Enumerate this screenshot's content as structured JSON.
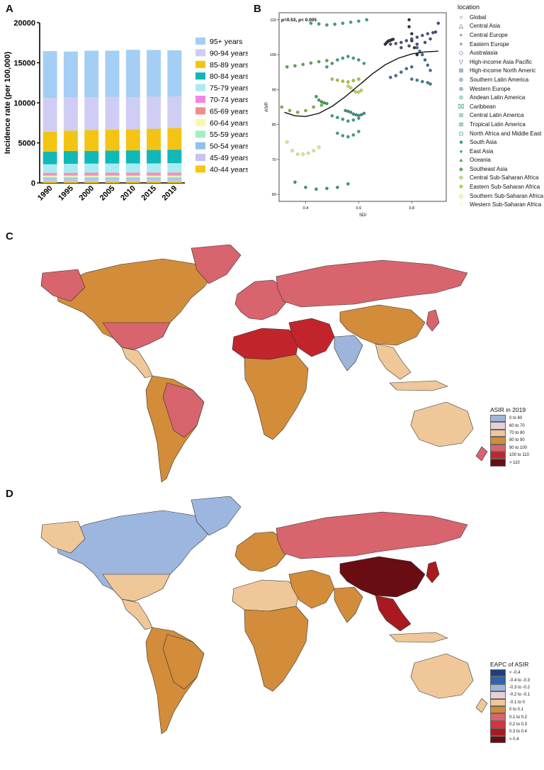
{
  "panels": {
    "a": "A",
    "b": "B",
    "c": "C",
    "d": "D"
  },
  "colors": {
    "c_scale": [
      "#9fb4da",
      "#e6cfd8",
      "#efc798",
      "#d38c3a",
      "#d8646d",
      "#c2242b",
      "#6a0d12"
    ],
    "d_scale": [
      "#1d3f82",
      "#2f62b0",
      "#9db6df",
      "#e8cdd6",
      "#efc798",
      "#d38c3a",
      "#d8646d",
      "#d8323b",
      "#a81a20",
      "#6a0d12"
    ]
  },
  "chart_data": [
    {
      "type": "bar",
      "stacked": true,
      "categories": [
        "1990",
        "1995",
        "2000",
        "2005",
        "2010",
        "2015",
        "2019"
      ],
      "ylabel": "Incidence rate (per 100,000)",
      "ylim": [
        0,
        20000
      ],
      "yticks": [
        0,
        5000,
        10000,
        15000,
        20000
      ],
      "series": [
        {
          "name": "40-44 years",
          "color": "#f5c518",
          "values": [
            170,
            170,
            170,
            170,
            170,
            170,
            170
          ]
        },
        {
          "name": "45-49 years",
          "color": "#c9c3ef",
          "values": [
            310,
            310,
            310,
            310,
            310,
            310,
            310
          ]
        },
        {
          "name": "50-54 years",
          "color": "#8fc1ea",
          "values": [
            130,
            130,
            130,
            130,
            130,
            130,
            130
          ]
        },
        {
          "name": "55-59 years",
          "color": "#a4ecc2",
          "values": [
            150,
            150,
            150,
            150,
            150,
            150,
            150
          ]
        },
        {
          "name": "60-64 years",
          "color": "#fbf6ae",
          "values": [
            160,
            160,
            160,
            160,
            160,
            160,
            160
          ]
        },
        {
          "name": "65-69 years",
          "color": "#ee8e86",
          "values": [
            160,
            170,
            170,
            170,
            170,
            170,
            170
          ]
        },
        {
          "name": "70-74 years",
          "color": "#ef88e5",
          "values": [
            180,
            180,
            190,
            200,
            210,
            210,
            220
          ]
        },
        {
          "name": "75-79 years",
          "color": "#a8ecf2",
          "values": [
            1070,
            1120,
            1130,
            1130,
            1130,
            1130,
            1150
          ]
        },
        {
          "name": "80-84 years",
          "color": "#10b8b7",
          "values": [
            1570,
            1590,
            1590,
            1620,
            1630,
            1680,
            1690
          ]
        },
        {
          "name": "85-89 years",
          "color": "#f4c414",
          "values": [
            2500,
            2550,
            2600,
            2600,
            2650,
            2650,
            2700
          ]
        },
        {
          "name": "90-94 years",
          "color": "#d0cdf4",
          "values": [
            4220,
            4150,
            4080,
            4080,
            4000,
            4000,
            3950
          ]
        },
        {
          "name": "95+ years",
          "color": "#a4cef3",
          "values": [
            5830,
            5720,
            5820,
            5790,
            5900,
            5830,
            5750
          ]
        }
      ]
    },
    {
      "type": "scatter",
      "annotation": "ρ=0.53, ρ< 0.005",
      "xlabel": "SDI",
      "ylabel": "ASIR",
      "xlim": [
        0.3,
        0.93
      ],
      "ylim": [
        58,
        112
      ],
      "xticks": [
        0.4,
        0.6,
        0.8
      ],
      "yticks": [
        60,
        70,
        80,
        90,
        100,
        110
      ],
      "legend_title": "location",
      "fit_line": {
        "x": [
          0.32,
          0.36,
          0.4,
          0.45,
          0.5,
          0.55,
          0.6,
          0.65,
          0.7,
          0.75,
          0.8,
          0.85,
          0.9
        ],
        "y": [
          83.5,
          82.5,
          82.3,
          83.2,
          85.2,
          88.0,
          91.2,
          94.4,
          97.1,
          99.0,
          100.2,
          100.8,
          101.0
        ]
      },
      "series": [
        {
          "name": "Global",
          "marker": "○",
          "color": "#444"
        },
        {
          "name": "Central Asia",
          "marker": "△",
          "color": "#333"
        },
        {
          "name": "Central Europe",
          "marker": "+",
          "color": "#333",
          "x": [
            0.7,
            0.705,
            0.71,
            0.715,
            0.72,
            0.725,
            0.73
          ],
          "y": [
            103.0,
            103.4,
            103.8,
            104.0,
            104.1,
            104.3,
            104.4
          ]
        },
        {
          "name": "Eastern Europe",
          "marker": "×",
          "color": "#333",
          "x": [
            0.79,
            0.79,
            0.8,
            0.8,
            0.81,
            0.82
          ],
          "y": [
            110.0,
            108.0,
            106.0,
            104.0,
            102.0,
            100.0
          ]
        },
        {
          "name": "Australasia",
          "marker": "◇",
          "color": "#4a4a8a",
          "x": [
            0.76,
            0.79,
            0.82,
            0.85,
            0.87,
            0.89,
            0.9
          ],
          "y": [
            102.0,
            102.5,
            103.0,
            103.5,
            104.5,
            106.5,
            109.0
          ]
        },
        {
          "name": "High-income Asia Pacific",
          "marker": "▽",
          "color": "#4b4f8e",
          "x": [
            0.72,
            0.74,
            0.76,
            0.78,
            0.8,
            0.82,
            0.84,
            0.86,
            0.88
          ],
          "y": [
            103.0,
            103.2,
            103.5,
            104.0,
            104.5,
            105.0,
            105.5,
            106.0,
            106.3
          ]
        },
        {
          "name": "High-income North Americ",
          "marker": "⊠",
          "color": "#3d6a9a",
          "x": [
            0.82,
            0.83,
            0.84,
            0.85,
            0.86,
            0.87
          ],
          "y": [
            102.0,
            101.0,
            100.0,
            98.5,
            97.0,
            95.5
          ]
        },
        {
          "name": "Southern Latin America",
          "marker": "⊛",
          "color": "#3d6a9a",
          "x": [
            0.72,
            0.74,
            0.76,
            0.78,
            0.8
          ],
          "y": [
            93.5,
            94.0,
            95.0,
            96.0,
            96.5
          ]
        },
        {
          "name": "Western Europe",
          "marker": "⊕",
          "color": "#3d7e8a",
          "x": [
            0.8,
            0.82,
            0.84,
            0.86,
            0.87
          ],
          "y": [
            93.0,
            92.7,
            92.3,
            92.0,
            91.6
          ]
        },
        {
          "name": "Andean Latin America",
          "marker": "⊜",
          "color": "#3f8f86",
          "x": [
            0.55,
            0.56,
            0.57,
            0.58,
            0.59,
            0.6,
            0.61,
            0.62
          ],
          "y": [
            84.0,
            83.8,
            83.5,
            83.0,
            82.8,
            82.6,
            82.8,
            83.2
          ]
        },
        {
          "name": "Caribbean",
          "marker": "⌧",
          "color": "#3aa08a",
          "x": [
            0.5,
            0.52,
            0.54,
            0.56,
            0.58,
            0.6
          ],
          "y": [
            82.5,
            82.0,
            81.5,
            81.0,
            81.3,
            81.8
          ]
        },
        {
          "name": "Central Latin America",
          "marker": "⊞",
          "color": "#3aa08a",
          "x": [
            0.48,
            0.5,
            0.52,
            0.54,
            0.56,
            0.58,
            0.6,
            0.62
          ],
          "y": [
            96.5,
            97.5,
            98.5,
            99.0,
            99.5,
            99.0,
            98.5,
            97.5
          ]
        },
        {
          "name": "Tropical Latin America",
          "marker": "⊠",
          "color": "#3aa08a",
          "x": [
            0.42,
            0.45,
            0.48,
            0.51,
            0.54,
            0.57,
            0.6,
            0.63
          ],
          "y": [
            109.0,
            108.8,
            108.5,
            108.7,
            109.0,
            109.3,
            109.6,
            110.0
          ]
        },
        {
          "name": "North Africa and Middle East",
          "marker": "⊡",
          "color": "#3aa08a",
          "x": [
            0.52,
            0.54,
            0.56,
            0.58,
            0.6
          ],
          "y": [
            77.5,
            76.8,
            76.5,
            77.0,
            78.0
          ]
        },
        {
          "name": "South Asia",
          "marker": "■",
          "color": "#2e9a7a",
          "x": [
            0.36,
            0.4,
            0.44,
            0.48,
            0.52,
            0.56
          ],
          "y": [
            63.5,
            62.0,
            61.5,
            61.7,
            62.0,
            63.0
          ]
        },
        {
          "name": "East Asia",
          "marker": "●",
          "color": "#3aa060",
          "x": [
            0.44,
            0.45,
            0.46,
            0.47,
            0.48
          ],
          "y": [
            88.0,
            87.0,
            86.5,
            86.2,
            86.0
          ]
        },
        {
          "name": "Oceania",
          "marker": "▲",
          "color": "#4aa050"
        },
        {
          "name": "Southeast Asia",
          "marker": "◆",
          "color": "#5aa84a",
          "x": [
            0.33,
            0.36,
            0.39,
            0.42,
            0.45,
            0.48
          ],
          "y": [
            96.5,
            96.8,
            97.2,
            97.6,
            98.0,
            98.3
          ]
        },
        {
          "name": "Central Sub-Saharan Africa",
          "marker": "⊕",
          "color": "#7eb83a",
          "x": [
            0.31,
            0.34,
            0.37,
            0.4,
            0.43,
            0.46
          ],
          "y": [
            85.0,
            84.0,
            83.5,
            84.0,
            85.0,
            85.5
          ]
        },
        {
          "name": "Eastern Sub-Saharan Africa",
          "marker": "✱",
          "color": "#a6c832",
          "x": [
            0.5,
            0.52,
            0.54,
            0.56,
            0.58,
            0.6
          ],
          "y": [
            93.0,
            92.7,
            92.4,
            92.2,
            92.6,
            93.0
          ]
        },
        {
          "name": "Southern Sub-Saharan Africa",
          "marker": "◎",
          "color": "#c9d85a",
          "x": [
            0.56,
            0.57,
            0.58,
            0.59,
            0.6,
            0.61
          ],
          "y": [
            91.0,
            90.5,
            89.7,
            89.3,
            89.3,
            89.8
          ]
        },
        {
          "name": "Western Sub-Saharan Africa",
          "marker": "○",
          "color": "#e8e890",
          "x": [
            0.33,
            0.35,
            0.37,
            0.39,
            0.41,
            0.43,
            0.45
          ],
          "y": [
            75.0,
            72.5,
            71.5,
            71.5,
            71.8,
            72.5,
            73.5
          ]
        }
      ]
    }
  ],
  "map_c": {
    "title": "ASIR in 2019",
    "legend": [
      "0 to 60",
      "60 to 70",
      "70 to 80",
      "80 to 90",
      "90 to 100",
      "100 to 110",
      "> 110"
    ]
  },
  "map_d": {
    "title": "EAPC of ASIR",
    "legend": [
      "< -0.4",
      "-0.4 to -0.3",
      "-0.3 to -0.2",
      "-0.2 to -0.1",
      "-0.1 to 0",
      "0 to 0.1",
      "0.1 to 0.2",
      "0.2 to 0.3",
      "0.3 to 0.4",
      "> 0.4"
    ]
  }
}
